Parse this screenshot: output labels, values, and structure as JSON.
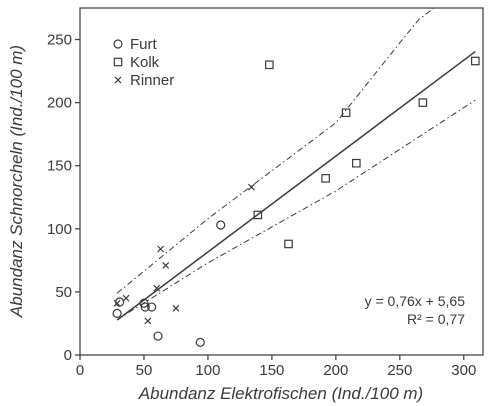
{
  "chart_data": {
    "type": "scatter",
    "xlabel": "Abundanz Elektrofischen (Ind./100 m)",
    "ylabel": "Abundanz Schnorcheln (Ind./100 m)",
    "xlim": [
      0,
      315
    ],
    "ylim": [
      0,
      275
    ],
    "xticks": [
      0,
      50,
      100,
      150,
      200,
      250,
      300
    ],
    "yticks": [
      0,
      50,
      100,
      150,
      200,
      250
    ],
    "grid": false,
    "legend_position": "top-left",
    "series": [
      {
        "name": "Furt",
        "marker": "circle",
        "x": [
          29,
          31,
          50,
          51,
          56,
          61,
          94,
          110
        ],
        "y": [
          33,
          42,
          41,
          38,
          38,
          15,
          10,
          103
        ]
      },
      {
        "name": "Kolk",
        "marker": "square",
        "x": [
          139,
          148,
          163,
          192,
          208,
          216,
          268,
          309
        ],
        "y": [
          111,
          230,
          88,
          140,
          192,
          152,
          200,
          233
        ]
      },
      {
        "name": "Rinner",
        "marker": "x",
        "x": [
          29,
          36,
          53,
          60,
          63,
          67,
          75,
          134
        ],
        "y": [
          41,
          45,
          27,
          53,
          84,
          71,
          37,
          133
        ]
      }
    ],
    "regression": {
      "slope": 0.76,
      "intercept": 5.65,
      "x_range": [
        29,
        309
      ],
      "equation": "y = 0,76x + 5,65",
      "r2": "R² = 0,77"
    },
    "confidence_band": {
      "upper": [
        [
          29,
          49
        ],
        [
          100,
          108
        ],
        [
          200,
          184
        ],
        [
          252,
          250
        ],
        [
          265,
          266
        ],
        [
          309,
          300
        ]
      ],
      "lower": [
        [
          29,
          28
        ],
        [
          100,
          73
        ],
        [
          200,
          130
        ],
        [
          309,
          202
        ]
      ]
    }
  }
}
